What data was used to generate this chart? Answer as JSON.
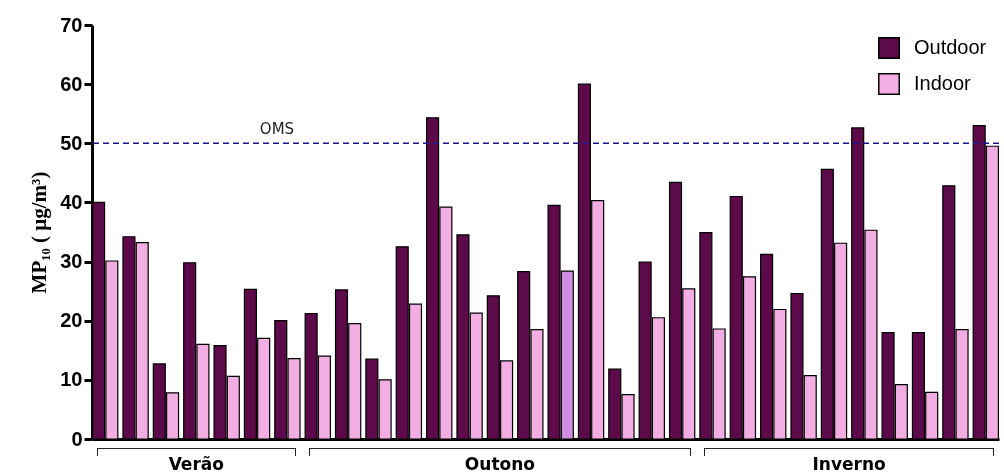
{
  "chart_data": {
    "type": "bar",
    "ylabel": "MP₁₀ ( μg/m³)",
    "categories": [
      null,
      null,
      null,
      null,
      null,
      null,
      null,
      null,
      null,
      null,
      null,
      null,
      null,
      null,
      null,
      null,
      null,
      null,
      null,
      null,
      null,
      null,
      null,
      null,
      null,
      null,
      null,
      null,
      null,
      null
    ],
    "series": [
      {
        "name": "Outdoor",
        "color": "#5c0a4a",
        "values": [
          40,
          34.2,
          12.7,
          29.8,
          15.8,
          25.3,
          20,
          21.2,
          25.2,
          13.5,
          32.5,
          54.3,
          34.5,
          24.2,
          28.3,
          39.5,
          60,
          11.8,
          29.9,
          43.4,
          34.9,
          41,
          31.2,
          24.6,
          45.6,
          52.6,
          18,
          18,
          42.8,
          53
        ]
      },
      {
        "name": "Indoor",
        "color": "#f2aee2",
        "colors": [
          "#f2aee2",
          "#f2aee2",
          "#f2aee2",
          "#f2aee2",
          "#f2aee2",
          "#f2aee2",
          "#f2aee2",
          "#f2aee2",
          "#f2aee2",
          "#f2aee2",
          "#f2aee2",
          "#f2aee2",
          "#f2aee2",
          "#f2aee2",
          "#f2aee2",
          "#d08ee0",
          "#f2aee2",
          "#f2aee2",
          "#f2aee2",
          "#f2aee2",
          "#f2aee2",
          "#f2aee2",
          "#f2aee2",
          "#f2aee2",
          "#f2aee2",
          "#f2aee2",
          "#f2aee2",
          "#f2aee2",
          "#f2aee2",
          "#f2aee2"
        ],
        "values": [
          30.1,
          33.2,
          7.8,
          16,
          10.6,
          17,
          13.6,
          14,
          19.5,
          10,
          22.8,
          39.2,
          21.3,
          13.2,
          18.5,
          28.4,
          40.3,
          7.5,
          20.5,
          25.4,
          18.6,
          27.4,
          21.9,
          10.7,
          33.1,
          35.3,
          9.2,
          7.9,
          18.5,
          49.5
        ]
      }
    ],
    "ylim": [
      0,
      70
    ],
    "yticks": [
      0,
      10,
      20,
      30,
      40,
      50,
      60,
      70
    ],
    "grid": false,
    "legend": "top right",
    "ref_lines": [
      {
        "axis": "y",
        "value": 50,
        "label": "OMS",
        "color": "#1a1a8c",
        "line_style": "dashed"
      }
    ],
    "annotations": [
      "Verão",
      "Outono",
      "Inverno"
    ]
  }
}
